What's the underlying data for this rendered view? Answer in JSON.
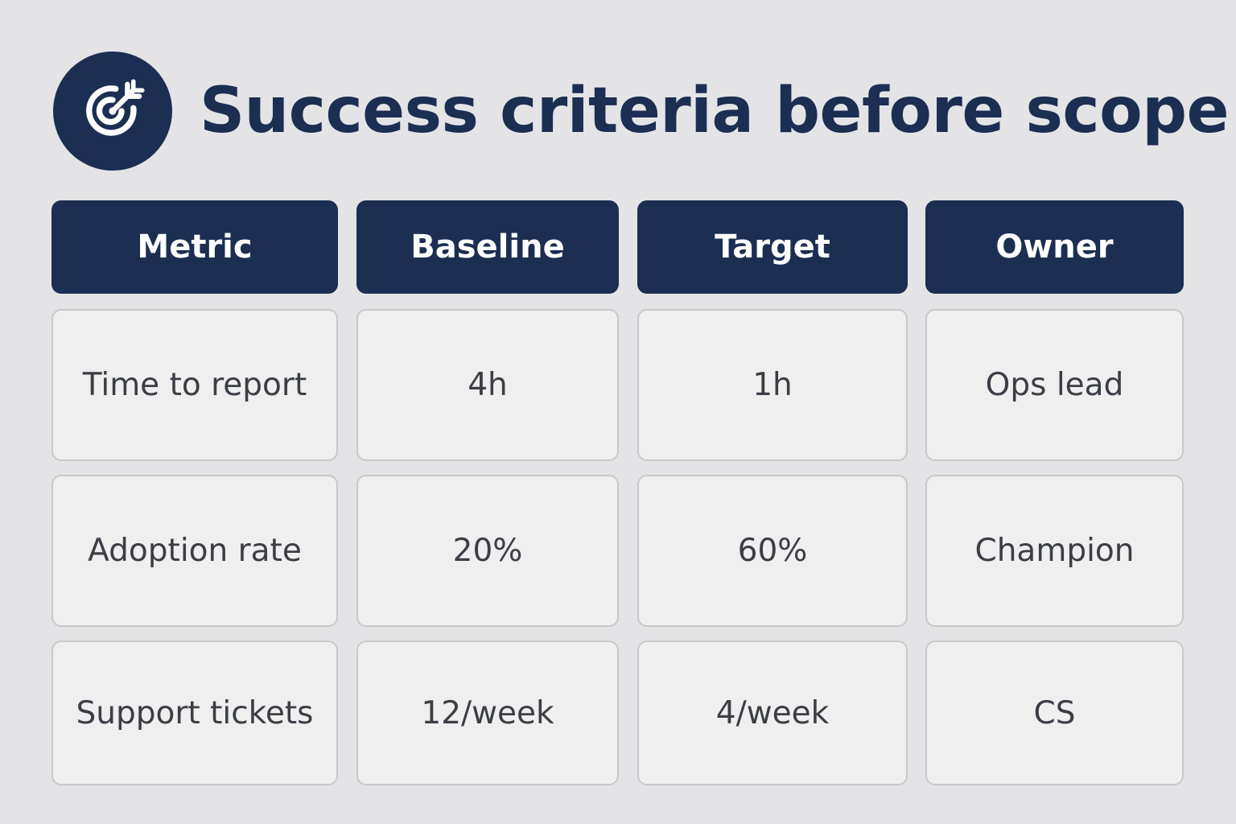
{
  "title": "Success criteria before scope",
  "icon": "target-icon",
  "colors": {
    "primary": "#1c2e52",
    "background": "#e4e4e6",
    "cell_background": "#efefef",
    "cell_border": "#c9c9cc",
    "cell_text": "#3b3e45"
  },
  "table": {
    "headers": [
      "Metric",
      "Baseline",
      "Target",
      "Owner"
    ],
    "rows": [
      [
        "Time to report",
        "4h",
        "1h",
        "Ops lead"
      ],
      [
        "Adoption rate",
        "20%",
        "60%",
        "Champion"
      ],
      [
        "Support tickets",
        "12/week",
        "4/week",
        "CS"
      ]
    ]
  }
}
